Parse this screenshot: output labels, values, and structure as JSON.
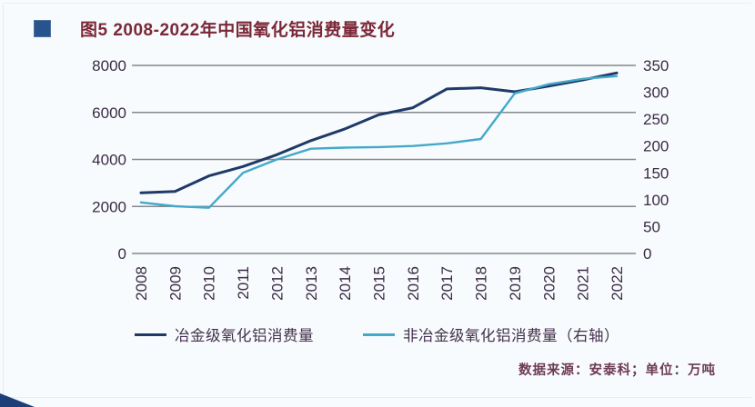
{
  "header": {
    "title": "图5  2008-2022年中国氧化铝消费量变化",
    "title_color": "#7b2838",
    "bullet_color": "#27548e"
  },
  "chart_data": {
    "type": "line",
    "title": "图5 2008-2022年中国氧化铝消费量变化",
    "categories": [
      "2008",
      "2009",
      "2010",
      "2011",
      "2012",
      "2013",
      "2014",
      "2015",
      "2016",
      "2017",
      "2018",
      "2019",
      "2020",
      "2021",
      "2022"
    ],
    "series": [
      {
        "name": "冶金级氧化铝消费量",
        "axis": "left",
        "color": "#1f3a68",
        "values": [
          2580,
          2640,
          3300,
          3700,
          4200,
          4800,
          5300,
          5900,
          6200,
          7000,
          7050,
          6880,
          7120,
          7380,
          7680
        ]
      },
      {
        "name": "非冶金级氧化铝消费量（右轴）",
        "axis": "right",
        "color": "#44a9c9",
        "values": [
          95,
          88,
          85,
          150,
          175,
          195,
          197,
          198,
          200,
          205,
          213,
          298,
          315,
          325,
          330
        ]
      }
    ],
    "left_axis": {
      "min": 0,
      "max": 8000,
      "ticks": [
        0,
        2000,
        4000,
        6000,
        8000
      ]
    },
    "right_axis": {
      "min": 0,
      "max": 350,
      "ticks": [
        0,
        50,
        100,
        150,
        200,
        250,
        300,
        350
      ]
    },
    "grid": "horizontal",
    "grid_color": "#85888c",
    "axis_text_color": "#3a2a45",
    "legend_position": "bottom",
    "xlabel_rotation": -90
  },
  "footer": {
    "source_note": "数据来源：安泰科；单位：万吨"
  }
}
